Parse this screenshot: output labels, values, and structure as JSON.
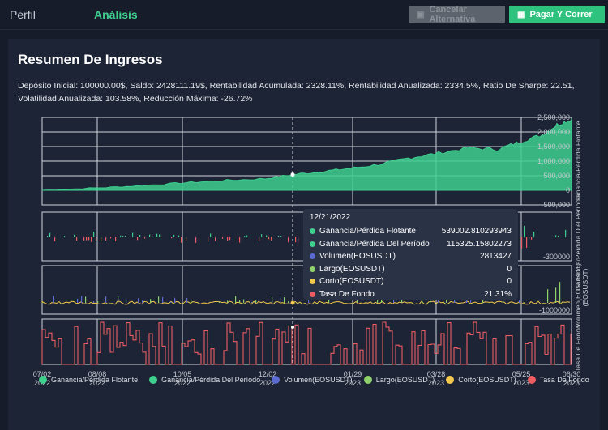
{
  "nav": {
    "tab_profile": "Perfil",
    "tab_analysis": "Análisis"
  },
  "toolbar": {
    "cancel_label": "Cancelar Alternativa",
    "run_label": "Pagar Y Correr"
  },
  "summary": {
    "title": "Resumen De Ingresos",
    "stats_line1": "Depósito Inicial: 100000.00$, Saldo: 2428111.19$, Rentabilidad Acumulada: 2328.11%, Rentabilidad Anualizada: 2334.5%, Ratio De Sharpe: 22.51,",
    "stats_line2": "Volatilidad Anualizada: 103.58%, Reducción Máxima: -26.72%"
  },
  "colors": {
    "green": "#3ecf8e",
    "blue": "#5b6bd1",
    "lightgreen": "#8fd16a",
    "yellow": "#f2c94c",
    "red": "#ec5d62",
    "accent": "#2fc27f"
  },
  "chart_data": {
    "type": "area",
    "x_ticks": [
      {
        "day": "07/02",
        "year": "2022"
      },
      {
        "day": "08/08",
        "year": "2022"
      },
      {
        "day": "10/05",
        "year": "2022"
      },
      {
        "day": "12/02",
        "year": "2022"
      },
      {
        "day": "01/29",
        "year": "2023"
      },
      {
        "day": "03/28",
        "year": "2023"
      },
      {
        "day": "05/25",
        "year": "2023"
      },
      {
        "day": "06/30",
        "year": "2023"
      }
    ],
    "axis1": {
      "ticks": [
        "2,500,000",
        "2,000,000",
        "1,500,000",
        "1,000,000",
        "500,000",
        "0",
        "-500,000"
      ],
      "ylim": [
        -500000,
        2500000
      ],
      "label": "Ganancia/Pérdida Flotante"
    },
    "axis2": {
      "ticks": [
        "-300000"
      ],
      "label": "Ganancia/Pérdida D el Período"
    },
    "axis3": {
      "ticks": [
        "-1000000"
      ],
      "label": "Volumen(EOSUSDT)"
    },
    "axis4": {
      "label": "Tasa De Fondo"
    },
    "axis5": {
      "label": "(EOSUSDT)"
    },
    "equity_series": {
      "name": "Ganancia/Pérdida Flotante",
      "x": [
        "2022-07-02",
        "2022-08-08",
        "2022-09-05",
        "2022-10-05",
        "2022-11-02",
        "2022-12-02",
        "2022-12-21",
        "2023-01-10",
        "2023-01-29",
        "2023-02-20",
        "2023-03-10",
        "2023-03-28",
        "2023-04-20",
        "2023-05-10",
        "2023-05-25",
        "2023-06-10",
        "2023-06-20",
        "2023-06-30"
      ],
      "values": [
        0,
        80000,
        150000,
        250000,
        330000,
        400000,
        539002,
        640000,
        750000,
        900000,
        1100000,
        1250000,
        1450000,
        1400000,
        1650000,
        1900000,
        2250000,
        2428111
      ]
    },
    "tooltip": {
      "date": "12/21/2022",
      "rows": [
        {
          "label": "Ganancia/Pérdida Flotante",
          "value": "539002.810293943"
        },
        {
          "label": "Ganancia/Pérdida Del Período",
          "value": "115325.15802273"
        },
        {
          "label": "Volumen(EOSUSDT)",
          "value": "2813427"
        },
        {
          "label": "Largo(EOSUSDT)",
          "value": "0"
        },
        {
          "label": "Corto(EOSUSDT)",
          "value": "0"
        },
        {
          "label": "Tasa De Fondo",
          "value": "21.31%"
        }
      ]
    },
    "legend": [
      {
        "label": "Ganancia/Pérdida Flotante",
        "color": "#3ecf8e"
      },
      {
        "label": "Ganancia/Pérdida Del Período",
        "color": "#3ecf8e"
      },
      {
        "label": "Volumen(EOSUSDT)",
        "color": "#5b6bd1"
      },
      {
        "label": "Largo(EOSUSDT)",
        "color": "#8fd16a"
      },
      {
        "label": "Corto(EOSUSDT)",
        "color": "#f2c94c"
      },
      {
        "label": "Tasa De Fondo",
        "color": "#ec5d62"
      }
    ]
  }
}
